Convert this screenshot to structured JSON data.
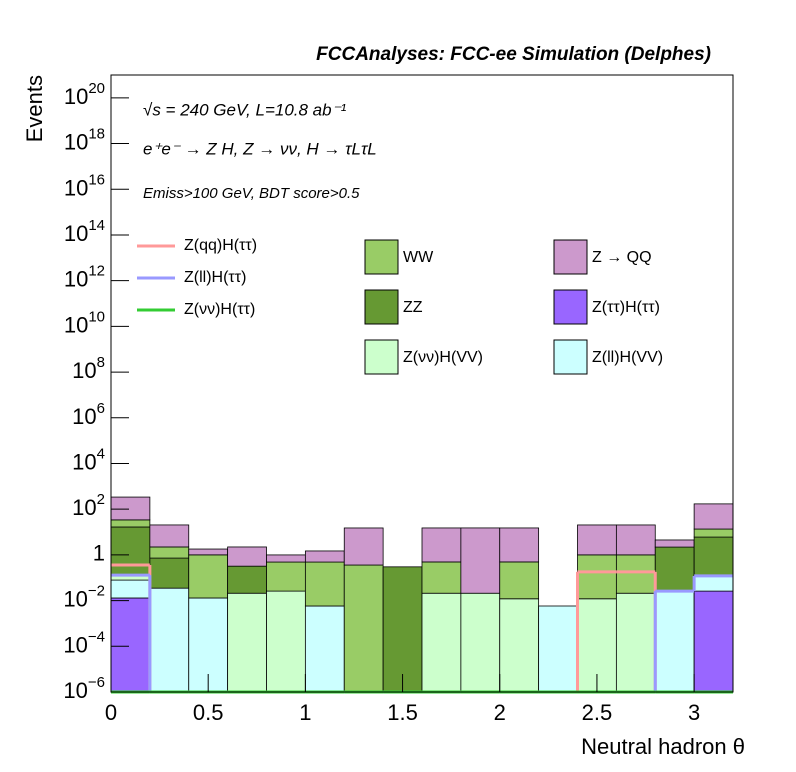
{
  "chart_data": {
    "type": "stacked_histogram",
    "title": "FCCAnalyses: FCC-ee Simulation (Delphes)",
    "annotations": [
      "√s = 240 GeV, L=10.8 ab⁻¹",
      "e⁺e⁻ → Z H, Z → νν, H → τLτL",
      "Emiss>100 GeV, BDT score>0.5"
    ],
    "xlabel": "Neutral hadron θ",
    "ylabel": "Events",
    "log_y": true,
    "bins": [
      0,
      0.2,
      0.4,
      0.6,
      0.8,
      1.0,
      1.2,
      1.4,
      1.6,
      1.8,
      2.0,
      2.2,
      2.4,
      2.6,
      2.8,
      3.0,
      3.2
    ],
    "xlim": [
      0,
      3.2
    ],
    "xticks": [
      0,
      0.5,
      1,
      1.5,
      2,
      2.5,
      3
    ],
    "ylim": [
      1e-06,
      1e+21
    ],
    "yticks": [
      {
        "value": 1e-06,
        "label": "10^-6"
      },
      {
        "value": 0.0001,
        "label": "10^-4"
      },
      {
        "value": 0.01,
        "label": "10^-2"
      },
      1,
      {
        "value": 100,
        "label": "10^2"
      },
      {
        "value": 10000.0,
        "label": "10^4"
      },
      {
        "value": 1000000.0,
        "label": "10^6"
      },
      {
        "value": 100000000.0,
        "label": "10^8"
      },
      {
        "value": 10000000000.0,
        "label": "10^10"
      },
      {
        "value": 1000000000000.0,
        "label": "10^12"
      },
      {
        "value": 100000000000000.0,
        "label": "10^14"
      },
      {
        "value": 1e+16,
        "label": "10^16"
      },
      {
        "value": 1e+18,
        "label": "10^18"
      },
      {
        "value": 1e+20,
        "label": "10^20"
      }
    ],
    "series": [
      {
        "name": "Z(ττ)H(ττ)",
        "color": "#9966ff",
        "histtype": "stacked",
        "values": [
          0.013,
          0,
          0,
          0,
          0,
          0,
          0,
          0,
          0,
          0,
          0,
          0,
          0,
          0,
          0,
          0.026
        ]
      },
      {
        "name": "Z(ll)H(VV)",
        "color": "#ccffff",
        "histtype": "stacked",
        "values": [
          0.066,
          0.035,
          0.013,
          0,
          0,
          0.0058,
          0,
          0,
          0,
          0,
          0,
          0.0058,
          0,
          0,
          0.026,
          0.094
        ]
      },
      {
        "name": "Z(νν)H(VV)",
        "color": "#ccffcc",
        "histtype": "stacked",
        "values": [
          0.051,
          0,
          0,
          0.021,
          0.026,
          0,
          0,
          0,
          0.021,
          0.021,
          0.012,
          0,
          0.012,
          0.021,
          0,
          0
        ]
      },
      {
        "name": "ZZ",
        "color": "#669933",
        "histtype": "stacked",
        "values": [
          16.5,
          0.69,
          0,
          0.3,
          0,
          0,
          0,
          0.3,
          0,
          0,
          0,
          0,
          0,
          0,
          2.17,
          5.9
        ]
      },
      {
        "name": "WW",
        "color": "#99cc66",
        "histtype": "stacked",
        "values": [
          17.4,
          1.5,
          0.99,
          0,
          0.46,
          0.48,
          0.36,
          0,
          0.47,
          0,
          0.48,
          0,
          0.99,
          0.98,
          0,
          7.5
        ]
      },
      {
        "name": "Z → QQ",
        "color": "#cc99cc",
        "histtype": "stacked",
        "values": [
          305,
          18.2,
          0.8,
          1.9,
          0.51,
          1.0,
          14.7,
          0,
          14.6,
          15.1,
          14.6,
          0,
          19.4,
          19.4,
          2.3,
          157
        ]
      },
      {
        "name": "Z(qq)H(ττ)",
        "color": "#ff9999",
        "histtype": "step",
        "values": [
          0.36,
          0,
          0,
          0,
          0,
          0,
          0,
          0,
          0,
          0,
          0,
          0,
          0.18,
          0.18,
          0,
          0
        ]
      },
      {
        "name": "Z(ll)H(ττ)",
        "color": "#9999ff",
        "histtype": "step",
        "values": [
          0.13,
          0,
          0,
          0,
          0,
          0,
          0,
          0,
          0,
          0,
          0,
          0,
          0,
          0,
          0.026,
          0.12
        ]
      },
      {
        "name": "Z(νν)H(ττ)",
        "color": "#33cc33",
        "histtype": "step",
        "values": [
          0,
          0,
          0,
          0,
          0,
          0,
          0,
          0,
          0,
          0,
          0,
          0,
          0,
          0,
          0,
          0
        ]
      }
    ]
  }
}
